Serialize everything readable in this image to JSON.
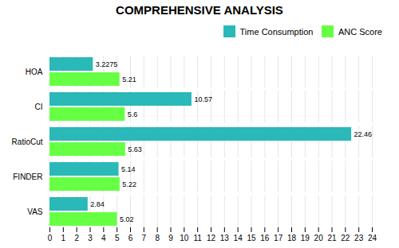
{
  "chart_data": {
    "type": "bar",
    "title": "COMPREHENSIVE ANALYSIS",
    "orientation": "horizontal",
    "categories": [
      "HOA",
      "CI",
      "RatioCut",
      "FINDER",
      "VAS"
    ],
    "series": [
      {
        "name": "Time Consumption",
        "color": "#2ab8b8",
        "values": [
          3.2275,
          10.57,
          22.46,
          5.14,
          2.84
        ]
      },
      {
        "name": "ANC Score",
        "color": "#66ff44",
        "values": [
          5.21,
          5.6,
          5.63,
          5.22,
          5.02
        ]
      }
    ],
    "xlim": [
      0,
      24
    ],
    "xticks": [
      0,
      1,
      2,
      3,
      4,
      5,
      6,
      7,
      8,
      9,
      10,
      11,
      12,
      13,
      14,
      15,
      16,
      17,
      18,
      19,
      20,
      21,
      22,
      23,
      24
    ],
    "grid": true,
    "legend": "upper right",
    "data_labels": true
  }
}
